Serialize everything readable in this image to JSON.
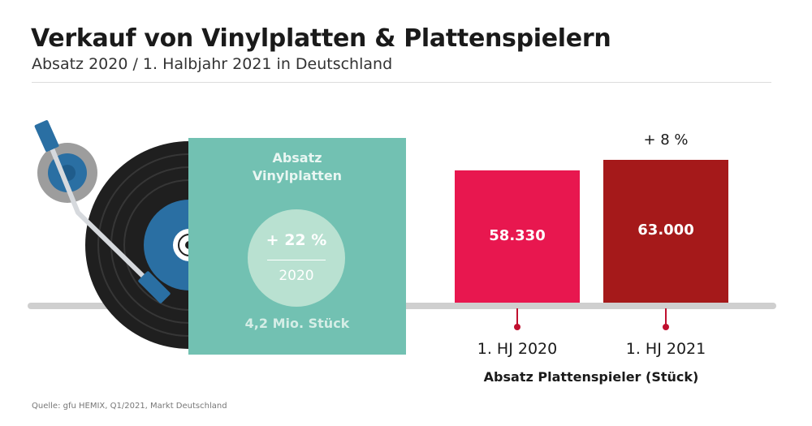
{
  "title": "Verkauf von Vinylplatten & Plattenspielern",
  "subtitle": "Absatz 2020 / 1. Halbjahr 2021 in Deutschland",
  "vinyl_panel": {
    "heading_line1": "Absatz",
    "heading_line2": "Vinylplatten",
    "change": "+ 22 %",
    "year": "2020",
    "units": "4,2 Mio. Stück"
  },
  "chart_data": {
    "type": "bar",
    "categories": [
      "1. HJ 2020",
      "1. HJ 2021"
    ],
    "values": [
      58330,
      63000
    ],
    "value_labels": [
      "58.330",
      "63.000"
    ],
    "colors": [
      "#e8174f",
      "#a5191a"
    ],
    "annotation": "+ 8 %",
    "xlabel": "Absatz Plattenspieler (Stück)",
    "ylabel": ""
  },
  "source": "Quelle: gfu HEMIX, Q1/2021, Markt Deutschland",
  "colors": {
    "vinyl_panel": "#72c1b2",
    "circle": "#b9e1d1",
    "baseline": "#cfcfcf",
    "tonearm_accent": "#2a6fa3"
  }
}
